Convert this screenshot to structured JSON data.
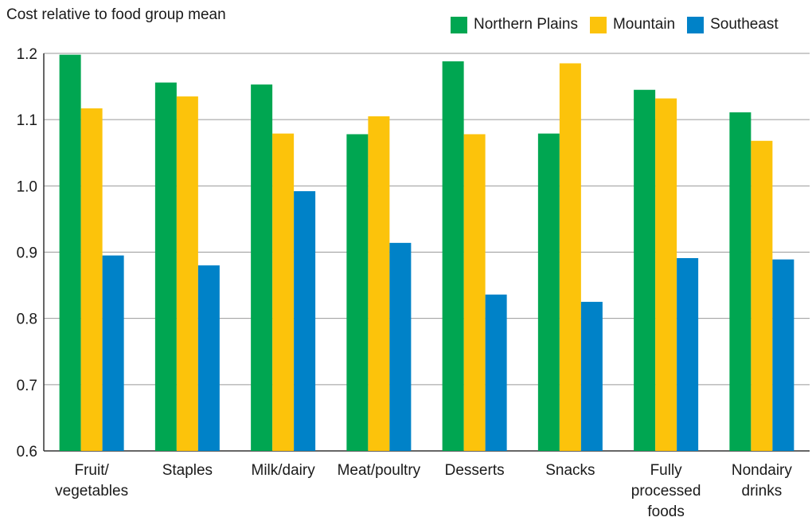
{
  "chart_data": {
    "type": "bar",
    "ylabel": "Cost relative to food group mean",
    "xlabel": "",
    "ylim": [
      0.6,
      1.2
    ],
    "yticks": [
      "0.6",
      "0.7",
      "0.8",
      "0.9",
      "1.0",
      "1.1",
      "1.2"
    ],
    "grid": true,
    "legend_position": "top-right",
    "categories": [
      [
        "Fruit/",
        "vegetables"
      ],
      [
        "Staples"
      ],
      [
        "Milk/dairy"
      ],
      [
        "Meat/poultry"
      ],
      [
        "Desserts"
      ],
      [
        "Snacks"
      ],
      [
        "Fully",
        "processed",
        "foods"
      ],
      [
        "Nondairy",
        "drinks"
      ]
    ],
    "series": [
      {
        "name": "Northern Plains",
        "color": "#00a651",
        "values": [
          1.198,
          1.156,
          1.153,
          1.078,
          1.188,
          1.079,
          1.145,
          1.111
        ]
      },
      {
        "name": "Mountain",
        "color": "#fcc30b",
        "values": [
          1.117,
          1.135,
          1.079,
          1.105,
          1.078,
          1.185,
          1.132,
          1.068
        ]
      },
      {
        "name": "Southeast",
        "color": "#0082c8",
        "values": [
          0.895,
          0.88,
          0.992,
          0.914,
          0.836,
          0.825,
          0.891,
          0.889
        ]
      }
    ]
  }
}
